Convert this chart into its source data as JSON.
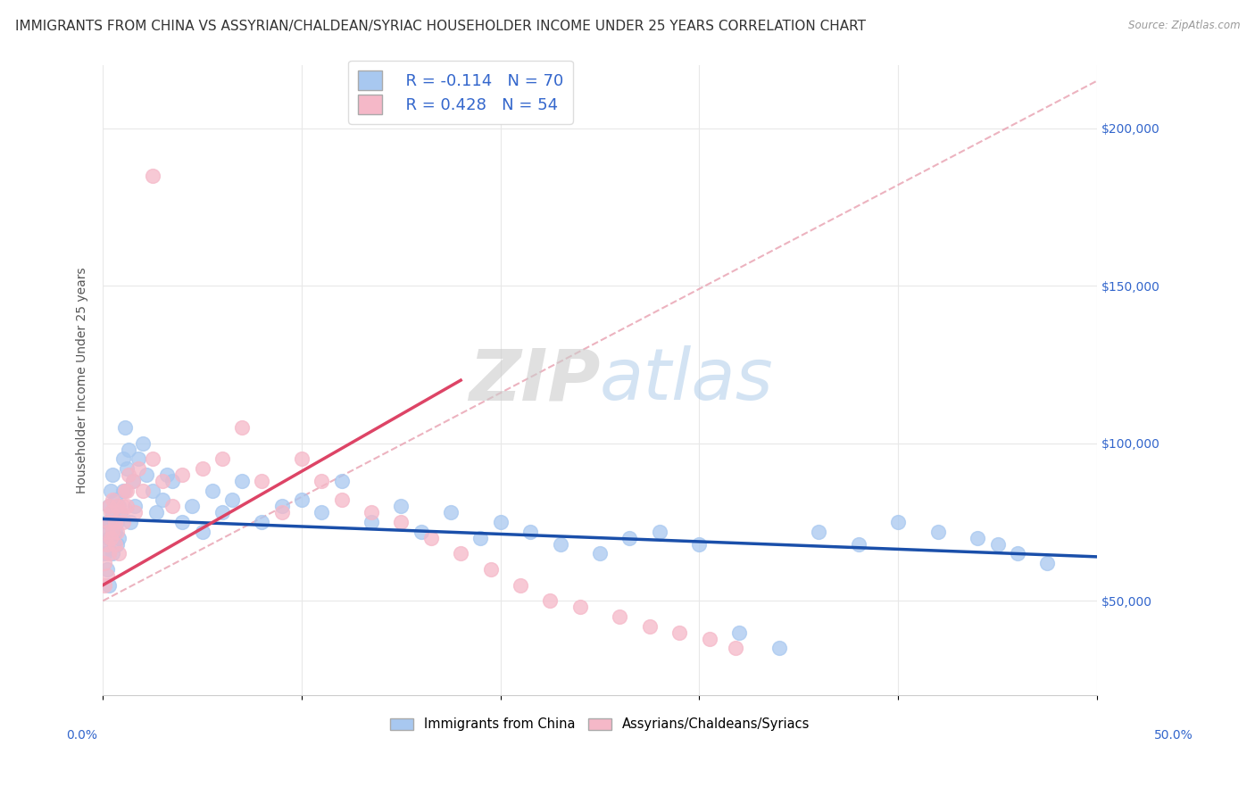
{
  "title": "IMMIGRANTS FROM CHINA VS ASSYRIAN/CHALDEAN/SYRIAC HOUSEHOLDER INCOME UNDER 25 YEARS CORRELATION CHART",
  "source": "Source: ZipAtlas.com",
  "ylabel": "Householder Income Under 25 years",
  "xlim": [
    0.0,
    0.5
  ],
  "ylim": [
    20000,
    220000
  ],
  "yticks": [
    50000,
    100000,
    150000,
    200000
  ],
  "ytick_labels": [
    "$50,000",
    "$100,000",
    "$150,000",
    "$200,000"
  ],
  "watermark_zip": "ZIP",
  "watermark_atlas": "atlas",
  "legend_r1": "R = -0.114",
  "legend_n1": "N = 70",
  "legend_r2": "R = 0.428",
  "legend_n2": "N = 54",
  "color_china": "#a8c8f0",
  "color_china_line": "#1a4faa",
  "color_assyrian": "#f5b8c8",
  "color_assyrian_line": "#dd4466",
  "color_ref_line": "#e8a0b0",
  "background_color": "#ffffff",
  "grid_color": "#e8e8e8",
  "title_color": "#333333",
  "source_color": "#999999",
  "axis_tick_color": "#3366cc",
  "title_fontsize": 11,
  "axis_label_fontsize": 10,
  "tick_fontsize": 10,
  "legend_fontsize": 13,
  "china_x": [
    0.001,
    0.001,
    0.002,
    0.002,
    0.002,
    0.003,
    0.003,
    0.003,
    0.004,
    0.004,
    0.005,
    0.005,
    0.005,
    0.006,
    0.006,
    0.007,
    0.007,
    0.008,
    0.008,
    0.009,
    0.01,
    0.01,
    0.011,
    0.012,
    0.013,
    0.014,
    0.015,
    0.016,
    0.018,
    0.02,
    0.022,
    0.025,
    0.027,
    0.03,
    0.032,
    0.035,
    0.04,
    0.045,
    0.05,
    0.055,
    0.06,
    0.065,
    0.07,
    0.08,
    0.09,
    0.1,
    0.11,
    0.12,
    0.135,
    0.15,
    0.16,
    0.175,
    0.19,
    0.2,
    0.215,
    0.23,
    0.25,
    0.265,
    0.28,
    0.3,
    0.32,
    0.34,
    0.36,
    0.38,
    0.4,
    0.42,
    0.44,
    0.45,
    0.46,
    0.475
  ],
  "china_y": [
    72000,
    65000,
    68000,
    75000,
    60000,
    80000,
    70000,
    55000,
    75000,
    85000,
    78000,
    65000,
    90000,
    72000,
    82000,
    68000,
    75000,
    80000,
    70000,
    78000,
    95000,
    85000,
    105000,
    92000,
    98000,
    75000,
    88000,
    80000,
    95000,
    100000,
    90000,
    85000,
    78000,
    82000,
    90000,
    88000,
    75000,
    80000,
    72000,
    85000,
    78000,
    82000,
    88000,
    75000,
    80000,
    82000,
    78000,
    88000,
    75000,
    80000,
    72000,
    78000,
    70000,
    75000,
    72000,
    68000,
    65000,
    70000,
    72000,
    68000,
    40000,
    35000,
    72000,
    68000,
    75000,
    72000,
    70000,
    68000,
    65000,
    62000
  ],
  "assyrian_x": [
    0.001,
    0.001,
    0.002,
    0.002,
    0.002,
    0.003,
    0.003,
    0.003,
    0.004,
    0.004,
    0.005,
    0.005,
    0.006,
    0.006,
    0.007,
    0.007,
    0.008,
    0.009,
    0.01,
    0.011,
    0.012,
    0.013,
    0.015,
    0.016,
    0.018,
    0.02,
    0.025,
    0.025,
    0.03,
    0.035,
    0.04,
    0.05,
    0.06,
    0.07,
    0.08,
    0.09,
    0.1,
    0.11,
    0.12,
    0.135,
    0.15,
    0.165,
    0.18,
    0.195,
    0.21,
    0.225,
    0.24,
    0.26,
    0.275,
    0.29,
    0.305,
    0.318,
    0.01,
    0.012
  ],
  "assyrian_y": [
    62000,
    55000,
    68000,
    72000,
    58000,
    75000,
    65000,
    80000,
    70000,
    78000,
    72000,
    82000,
    75000,
    68000,
    80000,
    72000,
    65000,
    78000,
    75000,
    85000,
    80000,
    90000,
    88000,
    78000,
    92000,
    85000,
    95000,
    185000,
    88000,
    80000,
    90000,
    92000,
    95000,
    105000,
    88000,
    78000,
    95000,
    88000,
    82000,
    78000,
    75000,
    70000,
    65000,
    60000,
    55000,
    50000,
    48000,
    45000,
    42000,
    40000,
    38000,
    35000,
    80000,
    85000
  ],
  "china_line_x": [
    0.0,
    0.5
  ],
  "china_line_y": [
    76000,
    64000
  ],
  "assyrian_line_x": [
    0.0,
    0.18
  ],
  "assyrian_line_y": [
    55000,
    120000
  ],
  "ref_line_x": [
    0.0,
    0.5
  ],
  "ref_line_y": [
    50000,
    215000
  ]
}
